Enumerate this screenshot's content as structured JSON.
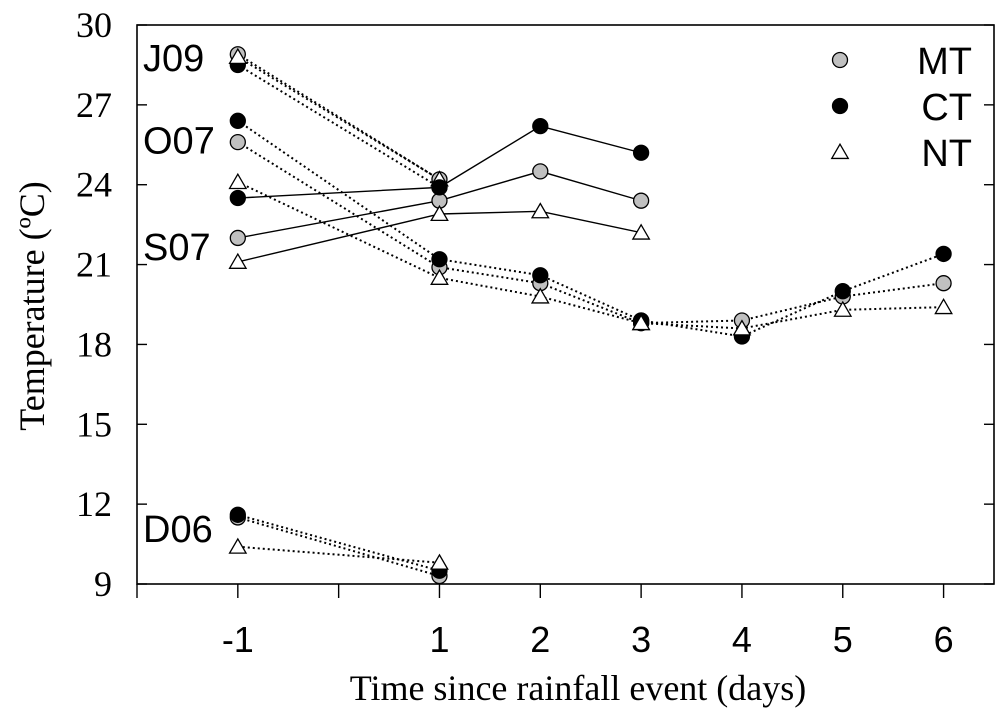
{
  "chart_data": {
    "type": "line",
    "title": "",
    "xlabel": "Time since rainfall event (days)",
    "ylabel": "Temperature (ºC)",
    "xlim": [
      -2,
      6.5
    ],
    "ylim": [
      9,
      30
    ],
    "xticks": [
      -1,
      1,
      2,
      3,
      4,
      5,
      6
    ],
    "yticks": [
      9,
      12,
      15,
      18,
      21,
      24,
      27,
      30
    ],
    "grid": false,
    "legend_position": "top-right",
    "legend": [
      {
        "key": "MT",
        "label": "MT",
        "marker": "circle",
        "fill": "#c0c0c0"
      },
      {
        "key": "CT",
        "label": "CT",
        "marker": "circle",
        "fill": "#000000"
      },
      {
        "key": "NT",
        "label": "NT",
        "marker": "triangle",
        "fill": "#ffffff"
      }
    ],
    "events": [
      {
        "label": "J09",
        "label_at": 28.8,
        "line_style": "dotted",
        "series": [
          {
            "key": "MT",
            "x": [
              -1,
              1
            ],
            "y": [
              28.9,
              24.2
            ]
          },
          {
            "key": "CT",
            "x": [
              -1,
              1
            ],
            "y": [
              28.5,
              23.9
            ]
          },
          {
            "key": "NT",
            "x": [
              -1,
              1
            ],
            "y": [
              28.8,
              24.2
            ]
          }
        ]
      },
      {
        "label": "O07",
        "label_at": 25.7,
        "line_style": "dotted",
        "series": [
          {
            "key": "MT",
            "x": [
              -1,
              1,
              2,
              3
            ],
            "y": [
              25.6,
              20.9,
              20.3,
              18.8
            ]
          },
          {
            "key": "CT",
            "x": [
              -1,
              1,
              2,
              3
            ],
            "y": [
              26.4,
              21.2,
              20.6,
              18.9
            ]
          },
          {
            "key": "NT",
            "x": [
              -1,
              1,
              2,
              3
            ],
            "y": [
              24.1,
              20.5,
              19.8,
              18.8
            ]
          }
        ]
      },
      {
        "label": "S07",
        "label_at": 21.7,
        "line_style": "solid",
        "series": [
          {
            "key": "MT",
            "x": [
              -1,
              1,
              2,
              3
            ],
            "y": [
              22.0,
              23.4,
              24.5,
              23.4
            ]
          },
          {
            "key": "CT",
            "x": [
              -1,
              1,
              2,
              3
            ],
            "y": [
              23.5,
              23.9,
              26.2,
              25.2
            ]
          },
          {
            "key": "NT",
            "x": [
              -1,
              1,
              2,
              3
            ],
            "y": [
              21.1,
              22.9,
              23.0,
              22.2
            ]
          }
        ]
      },
      {
        "label": "",
        "label_at": null,
        "line_style": "dotted",
        "series": [
          {
            "key": "MT",
            "x": [
              3,
              4,
              5,
              6
            ],
            "y": [
              18.8,
              18.9,
              19.8,
              20.3
            ]
          },
          {
            "key": "CT",
            "x": [
              3,
              4,
              5,
              6
            ],
            "y": [
              18.9,
              18.3,
              20.0,
              21.4
            ]
          },
          {
            "key": "NT",
            "x": [
              3,
              4,
              5,
              6
            ],
            "y": [
              18.8,
              18.6,
              19.3,
              19.4
            ]
          }
        ]
      },
      {
        "label": "D06",
        "label_at": 11.1,
        "line_style": "dotted",
        "series": [
          {
            "key": "MT",
            "x": [
              -1,
              1
            ],
            "y": [
              11.5,
              9.3
            ]
          },
          {
            "key": "CT",
            "x": [
              -1,
              1
            ],
            "y": [
              11.6,
              9.5
            ]
          },
          {
            "key": "NT",
            "x": [
              -1,
              1
            ],
            "y": [
              10.4,
              9.8
            ]
          }
        ]
      }
    ]
  }
}
